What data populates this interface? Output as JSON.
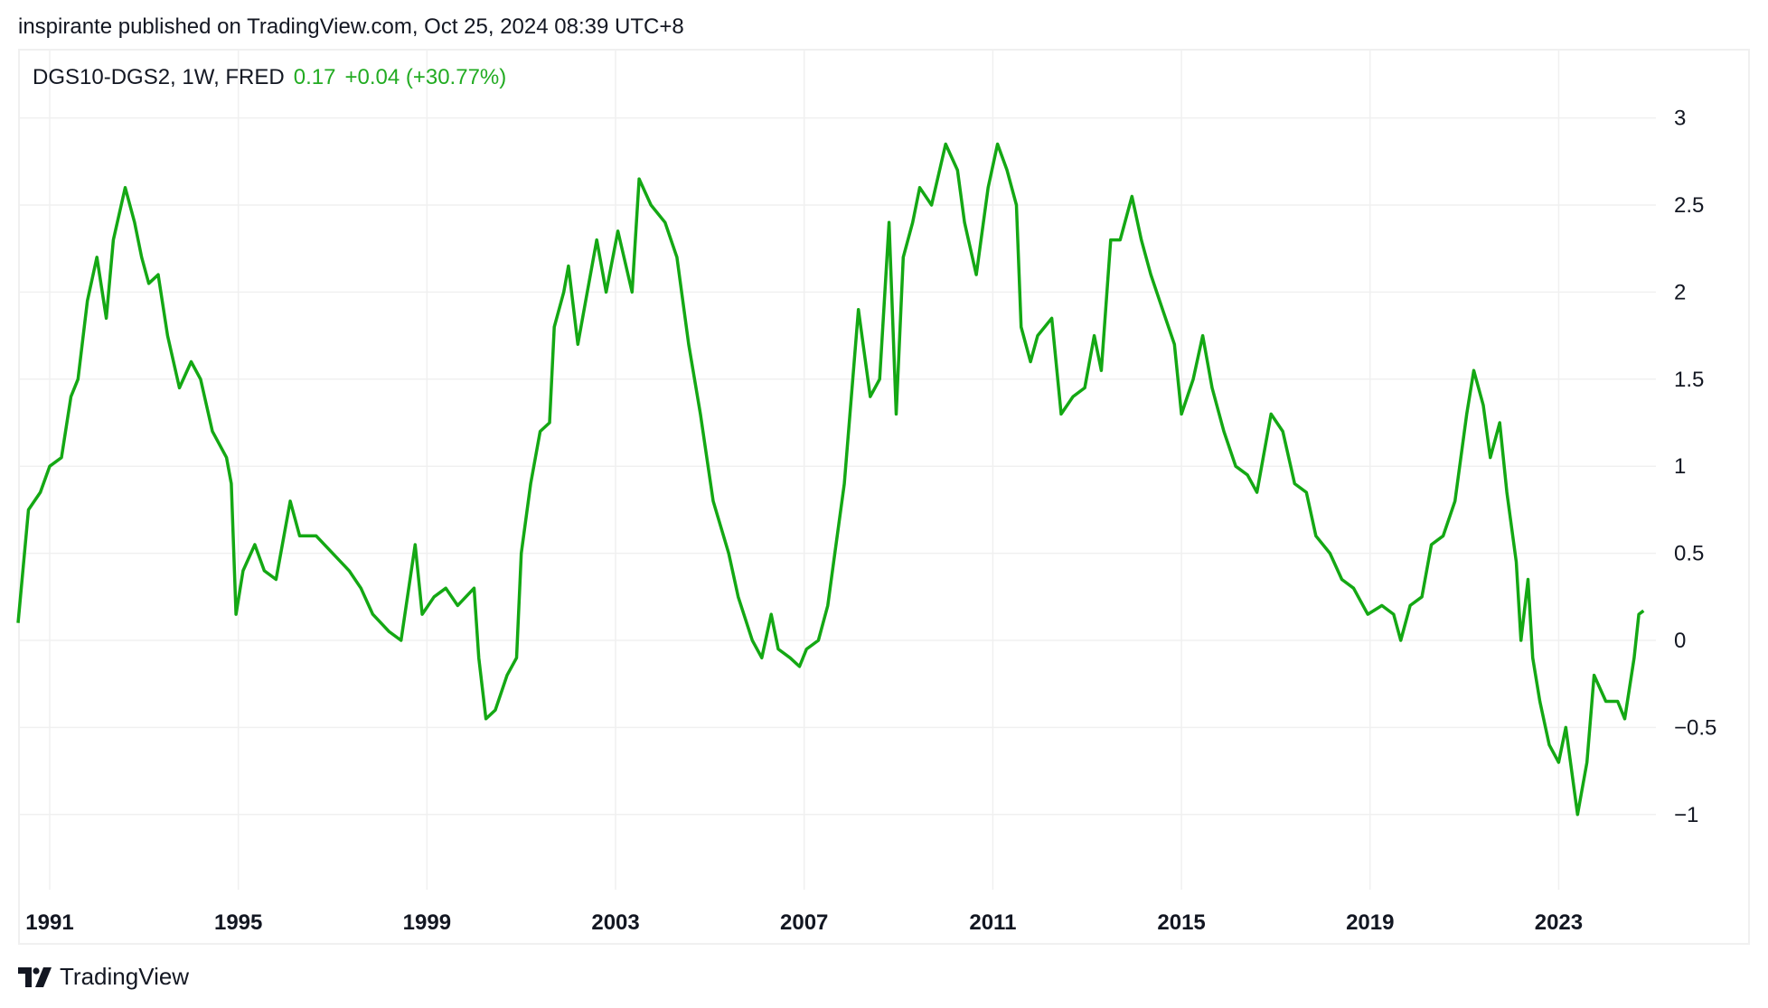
{
  "header": {
    "published": "inspirante published on TradingView.com, Oct 25, 2024 08:39 UTC+8"
  },
  "legend": {
    "symbol": "DGS10-DGS2, 1W, FRED",
    "last": "0.17",
    "change": "+0.04 (+30.77%)"
  },
  "footer": {
    "brand": "TradingView"
  },
  "colors": {
    "line": "#14a814",
    "grid": "#f0f0f0"
  },
  "chart_data": {
    "type": "line",
    "title": "",
    "xlabel": "",
    "ylabel": "",
    "xlim": [
      1990.3,
      2025.3
    ],
    "ylim": [
      -1.4,
      3.2
    ],
    "grid": true,
    "x_ticks": [
      "1991",
      "1995",
      "1999",
      "2003",
      "2007",
      "2011",
      "2015",
      "2019",
      "2023"
    ],
    "y_ticks": [
      "3",
      "2.5",
      "2",
      "1.5",
      "1",
      "0.5",
      "0",
      "−0.5",
      "−1"
    ],
    "y_tick_values": [
      3,
      2.5,
      2,
      1.5,
      1,
      0.5,
      0,
      -0.5,
      -1
    ],
    "x_tick_values": [
      1991,
      1995,
      1999,
      2003,
      2007,
      2011,
      2015,
      2019,
      2023
    ],
    "series": [
      {
        "x": [
          1990.33,
          1990.55,
          1990.8,
          1991.0,
          1991.25,
          1991.45,
          1991.6,
          1991.8,
          1992.0,
          1992.2,
          1992.35,
          1992.6,
          1992.8,
          1992.95,
          1993.1,
          1993.3,
          1993.5,
          1993.75,
          1994.0,
          1994.2,
          1994.45,
          1994.75,
          1994.85,
          1994.95,
          1995.1,
          1995.35,
          1995.55,
          1995.8,
          1996.1,
          1996.3,
          1996.65,
          1997.0,
          1997.35,
          1997.6,
          1997.85,
          1998.2,
          1998.45,
          1998.75,
          1998.9,
          1999.15,
          1999.4,
          1999.65,
          2000.0,
          2000.1,
          2000.25,
          2000.45,
          2000.7,
          2000.9,
          2001.0,
          2001.2,
          2001.4,
          2001.6,
          2001.7,
          2001.9,
          2002.0,
          2002.2,
          2002.4,
          2002.6,
          2002.8,
          2003.05,
          2003.35,
          2003.5,
          2003.75,
          2004.05,
          2004.3,
          2004.55,
          2004.8,
          2005.07,
          2005.4,
          2005.6,
          2005.9,
          2006.1,
          2006.3,
          2006.45,
          2006.7,
          2006.9,
          2007.05,
          2007.3,
          2007.5,
          2007.65,
          2007.85,
          2008.0,
          2008.15,
          2008.25,
          2008.4,
          2008.6,
          2008.8,
          2008.95,
          2009.1,
          2009.3,
          2009.45,
          2009.7,
          2010.0,
          2010.25,
          2010.4,
          2010.65,
          2010.9,
          2011.1,
          2011.3,
          2011.5,
          2011.6,
          2011.8,
          2011.95,
          2012.25,
          2012.45,
          2012.7,
          2012.95,
          2013.15,
          2013.3,
          2013.5,
          2013.7,
          2013.95,
          2014.15,
          2014.35,
          2014.6,
          2014.85,
          2015.0,
          2015.25,
          2015.45,
          2015.65,
          2015.9,
          2016.15,
          2016.4,
          2016.6,
          2016.9,
          2017.15,
          2017.4,
          2017.65,
          2017.85,
          2018.15,
          2018.4,
          2018.65,
          2018.95,
          2019.25,
          2019.5,
          2019.65,
          2019.85,
          2020.1,
          2020.3,
          2020.55,
          2020.8,
          2021.05,
          2021.2,
          2021.4,
          2021.55,
          2021.75,
          2021.9,
          2022.1,
          2022.2,
          2022.35,
          2022.45,
          2022.6,
          2022.8,
          2023.0,
          2023.15,
          2023.4,
          2023.6,
          2023.75,
          2024.0,
          2024.25,
          2024.4,
          2024.6,
          2024.7,
          2024.8
        ],
        "y": [
          0.1,
          0.75,
          0.85,
          1.0,
          1.05,
          1.4,
          1.5,
          1.95,
          2.2,
          1.85,
          2.3,
          2.6,
          2.4,
          2.2,
          2.05,
          2.1,
          1.75,
          1.45,
          1.6,
          1.5,
          1.2,
          1.05,
          0.9,
          0.15,
          0.4,
          0.55,
          0.4,
          0.35,
          0.8,
          0.6,
          0.6,
          0.5,
          0.4,
          0.3,
          0.15,
          0.05,
          0.0,
          0.55,
          0.15,
          0.25,
          0.3,
          0.2,
          0.3,
          -0.1,
          -0.45,
          -0.4,
          -0.2,
          -0.1,
          0.5,
          0.9,
          1.2,
          1.25,
          1.8,
          2.0,
          2.15,
          1.7,
          2.0,
          2.3,
          2.0,
          2.35,
          2.0,
          2.65,
          2.5,
          2.4,
          2.2,
          1.7,
          1.3,
          0.8,
          0.5,
          0.25,
          0.0,
          -0.1,
          0.15,
          -0.05,
          -0.1,
          -0.15,
          -0.05,
          0.0,
          0.2,
          0.5,
          0.9,
          1.4,
          1.9,
          1.7,
          1.4,
          1.5,
          2.4,
          1.3,
          2.2,
          2.4,
          2.6,
          2.5,
          2.85,
          2.7,
          2.4,
          2.1,
          2.6,
          2.85,
          2.7,
          2.5,
          1.8,
          1.6,
          1.75,
          1.85,
          1.3,
          1.4,
          1.45,
          1.75,
          1.55,
          2.3,
          2.3,
          2.55,
          2.3,
          2.1,
          1.9,
          1.7,
          1.3,
          1.5,
          1.75,
          1.45,
          1.2,
          1.0,
          0.95,
          0.85,
          1.3,
          1.2,
          0.9,
          0.85,
          0.6,
          0.5,
          0.35,
          0.3,
          0.15,
          0.2,
          0.15,
          0.0,
          0.2,
          0.25,
          0.55,
          0.6,
          0.8,
          1.3,
          1.55,
          1.35,
          1.05,
          1.25,
          0.85,
          0.45,
          0.0,
          0.35,
          -0.1,
          -0.35,
          -0.6,
          -0.7,
          -0.5,
          -1.0,
          -0.7,
          -0.2,
          -0.35,
          -0.35,
          -0.45,
          -0.1,
          0.15,
          0.17
        ]
      }
    ]
  }
}
